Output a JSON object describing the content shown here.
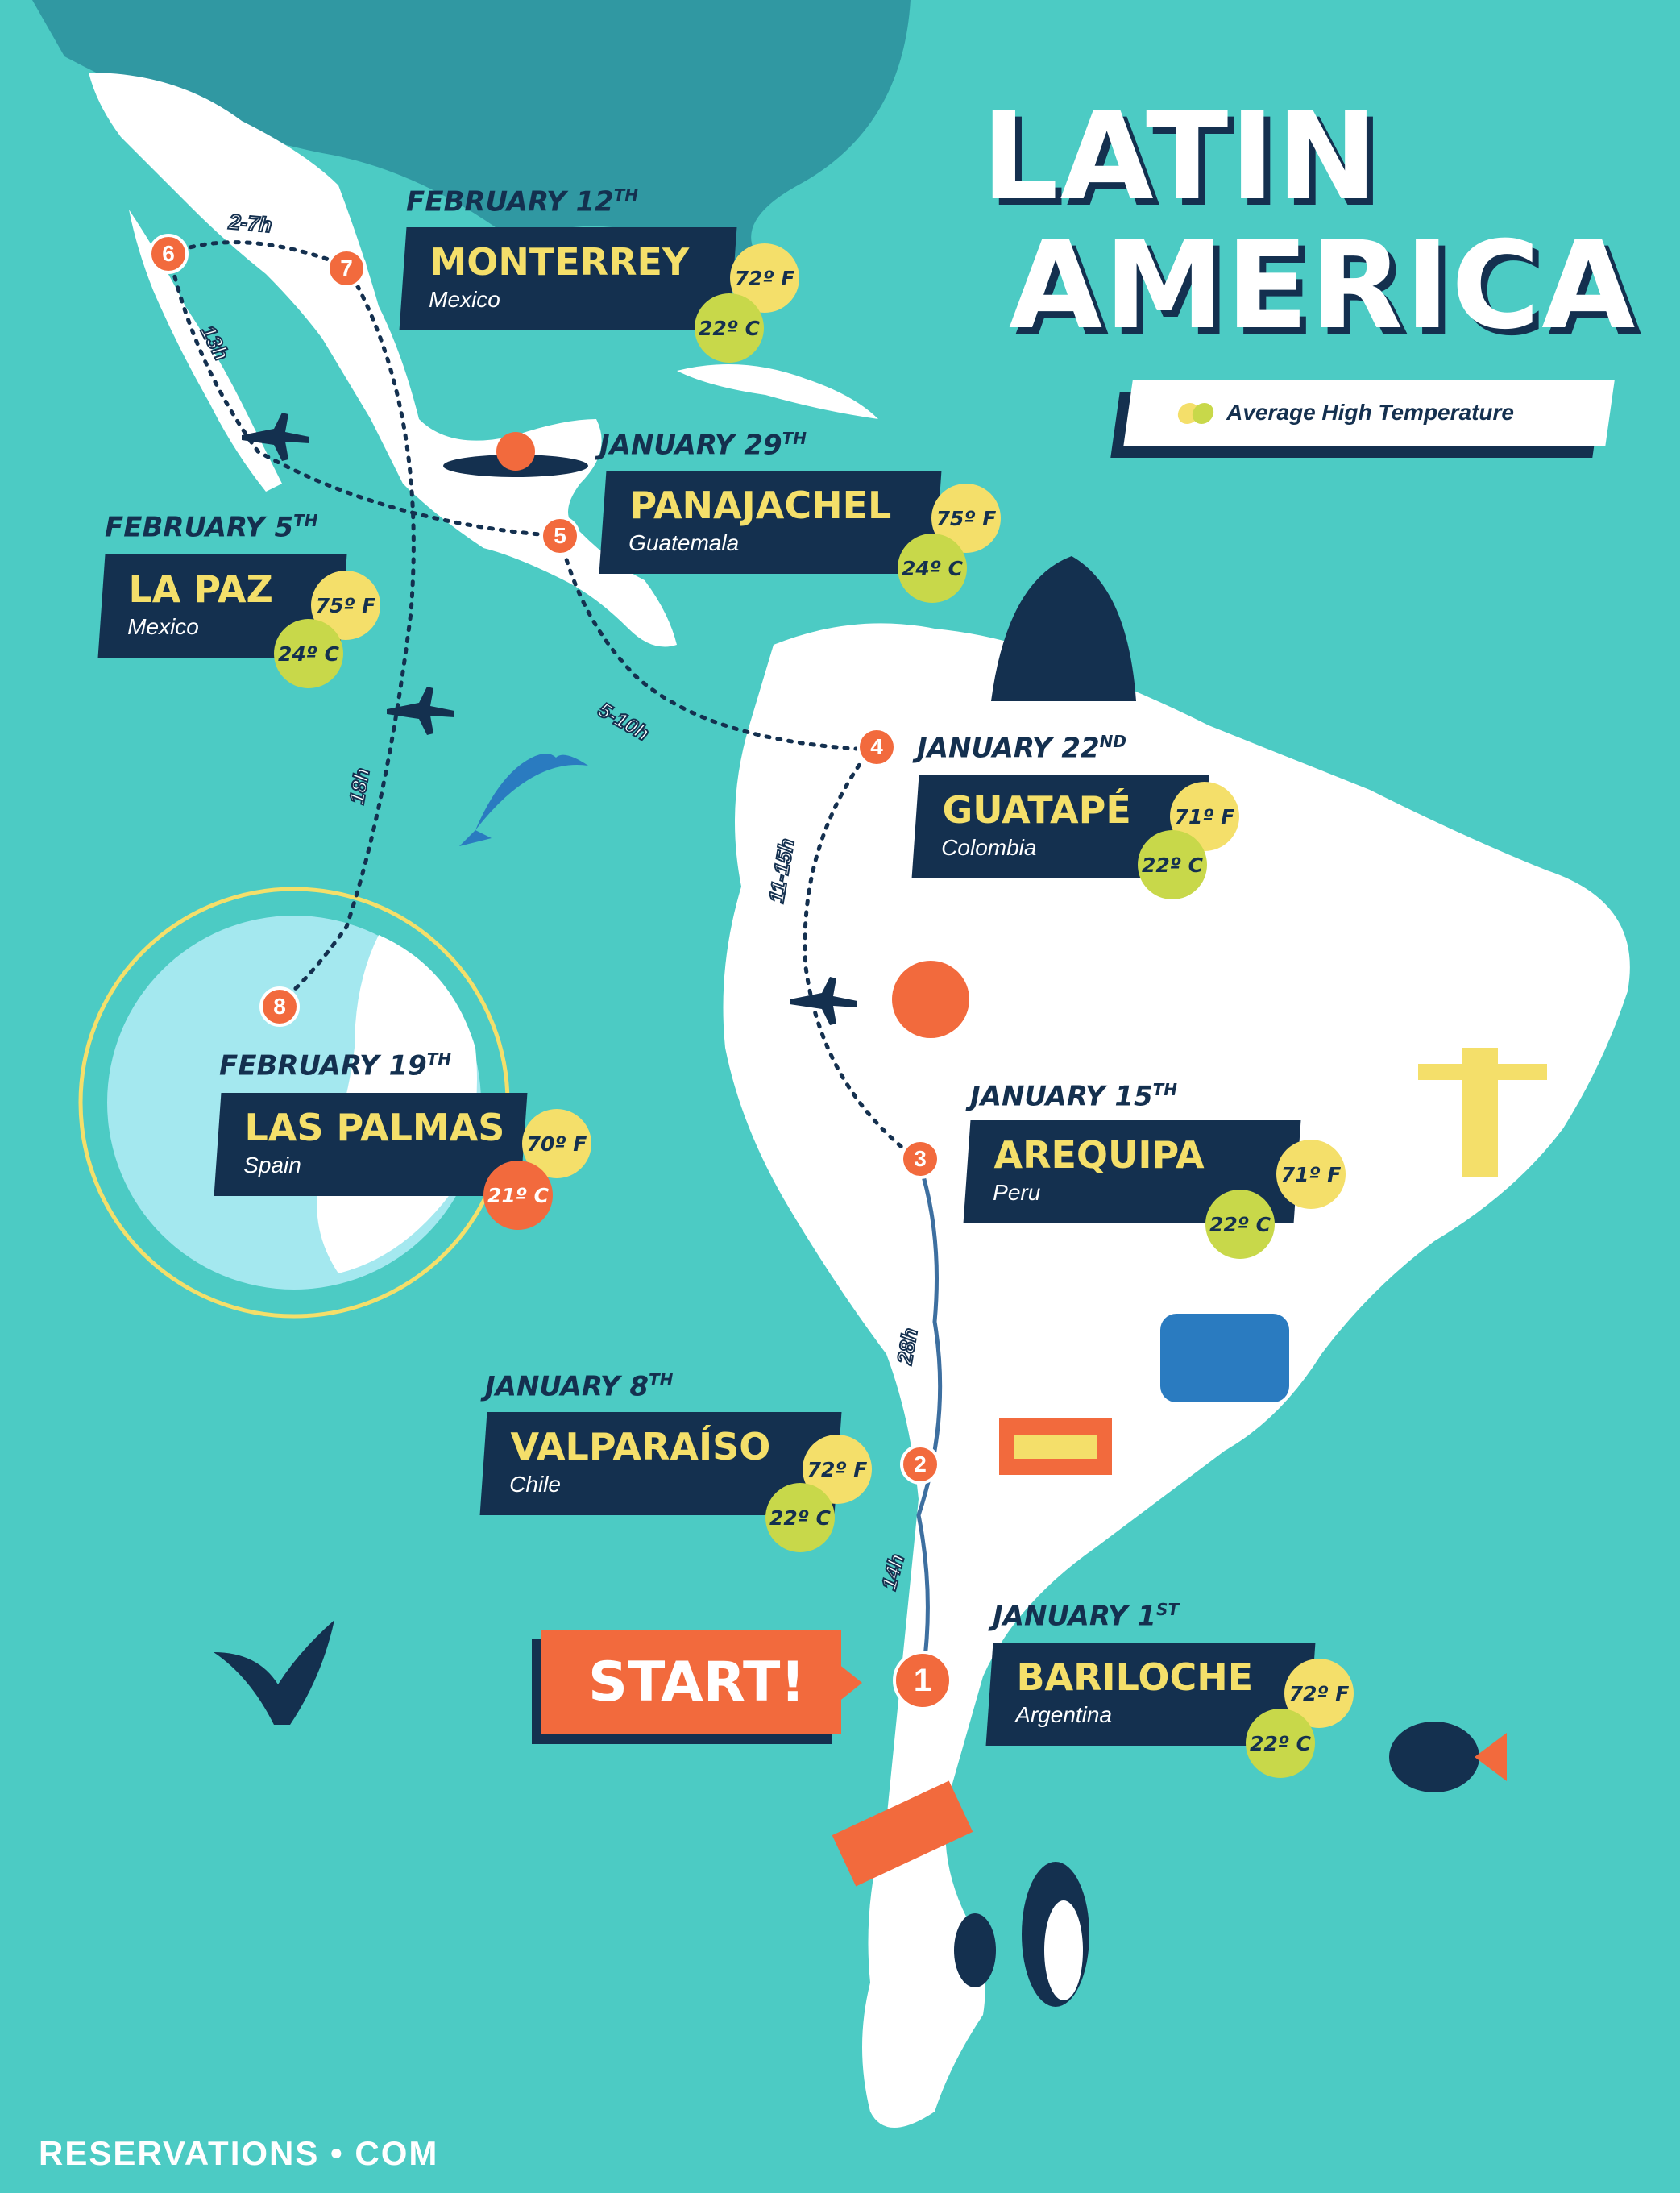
{
  "title": {
    "line1": "LATIN",
    "line2": "AMERICA"
  },
  "legend": {
    "label": "Average High Temperature",
    "colors": [
      "#f4df6a",
      "#c8d84a"
    ]
  },
  "colors": {
    "ocean": "#4ccbc4",
    "land": "#ffffff",
    "navy": "#14304f",
    "accent": "#f26a3d",
    "yellow": "#f4df6a",
    "lime": "#c8d84a"
  },
  "start_label": "START!",
  "brand": "RESERVATIONS • COM",
  "stops": [
    {
      "num": "1",
      "date_main": "JANUARY 1",
      "date_suffix": "ST",
      "city": "BARILOCHE",
      "country": "Argentina",
      "temp_f": "72º F",
      "temp_c": "22º C"
    },
    {
      "num": "2",
      "date_main": "JANUARY 8",
      "date_suffix": "TH",
      "city": "VALPARAÍSO",
      "country": "Chile",
      "temp_f": "72º F",
      "temp_c": "22º C"
    },
    {
      "num": "3",
      "date_main": "JANUARY 15",
      "date_suffix": "TH",
      "city": "AREQUIPA",
      "country": "Peru",
      "temp_f": "71º F",
      "temp_c": "22º C"
    },
    {
      "num": "4",
      "date_main": "JANUARY 22",
      "date_suffix": "ND",
      "city": "GUATAPÉ",
      "country": "Colombia",
      "temp_f": "71º F",
      "temp_c": "22º C"
    },
    {
      "num": "5",
      "date_main": "JANUARY 29",
      "date_suffix": "TH",
      "city": "PANAJACHEL",
      "country": "Guatemala",
      "temp_f": "75º F",
      "temp_c": "24º C"
    },
    {
      "num": "6",
      "date_main": "FEBRUARY 5",
      "date_suffix": "TH",
      "city": "LA PAZ",
      "country": "Mexico",
      "temp_f": "75º F",
      "temp_c": "24º C"
    },
    {
      "num": "7",
      "date_main": "FEBRUARY 12",
      "date_suffix": "TH",
      "city": "MONTERREY",
      "country": "Mexico",
      "temp_f": "72º F",
      "temp_c": "22º C"
    },
    {
      "num": "8",
      "date_main": "FEBRUARY 19",
      "date_suffix": "TH",
      "city": "LAS PALMAS",
      "country": "Spain",
      "temp_f": "70º F",
      "temp_c": "21º C"
    }
  ],
  "durations": [
    "14h",
    "28h",
    "11-15h",
    "5-10h",
    "13h",
    "2-7h",
    "18h"
  ]
}
